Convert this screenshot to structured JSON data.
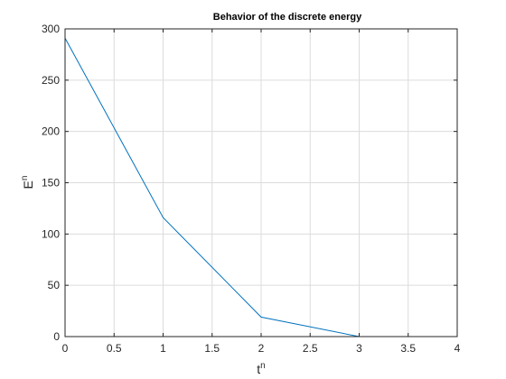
{
  "chart_data": {
    "type": "line",
    "title": "Behavior of the discrete energy",
    "xlabel": "t",
    "xlabel_sup": "n",
    "ylabel": "E",
    "ylabel_sup": "n",
    "xlim": [
      0,
      4
    ],
    "ylim": [
      0,
      300
    ],
    "xticks": [
      0,
      0.5,
      1,
      1.5,
      2,
      2.5,
      3,
      3.5,
      4
    ],
    "yticks": [
      0,
      50,
      100,
      150,
      200,
      250,
      300
    ],
    "grid": true,
    "series": [
      {
        "x": [
          0,
          1,
          2,
          3,
          4
        ],
        "y": [
          291,
          116,
          19,
          0,
          0
        ],
        "color": "#0072BD"
      }
    ]
  }
}
